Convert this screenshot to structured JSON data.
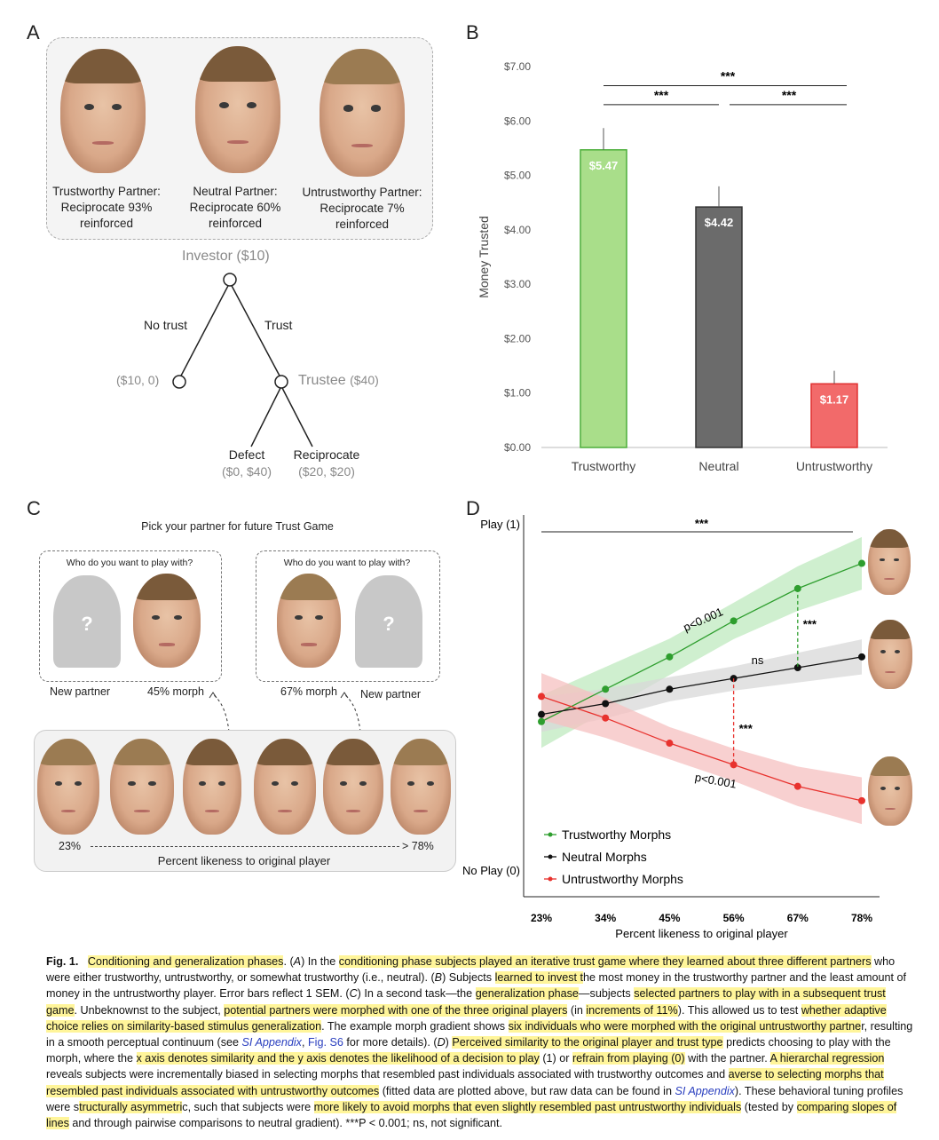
{
  "panels": {
    "a": "A",
    "b": "B",
    "c": "C",
    "d": "D"
  },
  "panel_a": {
    "partners": [
      {
        "line1": "Trustworthy Partner:",
        "line2": "Reciprocate 93%",
        "line3": "reinforced"
      },
      {
        "line1": "Neutral Partner:",
        "line2": "Reciprocate 60%",
        "line3": "reinforced"
      },
      {
        "line1": "Untrustworthy Partner:",
        "line2": "Reciprocate 7%",
        "line3": "reinforced"
      }
    ],
    "tree": {
      "investor": "Investor ($10)",
      "no_trust": "No trust",
      "trust": "Trust",
      "no_trust_payoff": "($10, 0)",
      "trustee": "Trustee",
      "trustee_amount": "($40)",
      "defect": "Defect",
      "defect_payoff": "($0, $40)",
      "reciprocate": "Reciprocate",
      "reciprocate_payoff": "($20, $20)"
    }
  },
  "panel_c": {
    "title": "Pick your partner for future Trust Game",
    "question": "Who do you want to play with?",
    "unknown_mark": "?",
    "left_labels": [
      "New partner",
      "45% morph"
    ],
    "right_labels": [
      "67% morph",
      "New partner"
    ],
    "gradient_left": "23%",
    "gradient_right": "> 78%",
    "gradient_label": "Percent likeness to original player"
  },
  "chart_data": [
    {
      "type": "bar",
      "categories": [
        "Trustworthy",
        "Neutral",
        "Untrustworthy"
      ],
      "values": [
        5.47,
        4.42,
        1.17
      ],
      "data_labels": [
        "$5.47",
        "$4.42",
        "$1.17"
      ],
      "errors": [
        0.4,
        0.38,
        0.24
      ],
      "colors": [
        "#a9de8a",
        "#6b6b6b",
        "#f26a6a"
      ],
      "edge_colors": [
        "#4cae3a",
        "#333333",
        "#e03030"
      ],
      "ylabel": "Money Trusted",
      "ylim": [
        0,
        7
      ],
      "yticks": [
        "$0.00",
        "$1.00",
        "$2.00",
        "$3.00",
        "$4.00",
        "$5.00",
        "$6.00",
        "$7.00"
      ],
      "significance": [
        "***",
        "***",
        "***"
      ]
    },
    {
      "type": "line",
      "x": [
        23,
        34,
        45,
        56,
        67,
        78
      ],
      "xtick_labels": [
        "23%",
        "34%",
        "45%",
        "56%",
        "67%",
        "78%"
      ],
      "xlabel": "Percent likeness to original player",
      "ylim": [
        0,
        1
      ],
      "ytick_labels": [
        "No Play (0)",
        "Play (1)"
      ],
      "series": [
        {
          "name": "Trustworthy Morphs",
          "color": "#2e9e2e",
          "band": "#bfeabf",
          "values": [
            0.45,
            0.54,
            0.63,
            0.73,
            0.82,
            0.89
          ]
        },
        {
          "name": "Neutral Morphs",
          "color": "#111111",
          "band": "#d8d8d8",
          "values": [
            0.47,
            0.5,
            0.54,
            0.57,
            0.6,
            0.63
          ]
        },
        {
          "name": "Untrustworthy Morphs",
          "color": "#e8322e",
          "band": "#f6c0c0",
          "values": [
            0.52,
            0.46,
            0.39,
            0.33,
            0.27,
            0.23
          ]
        }
      ],
      "annotations": [
        "***",
        "p<0.001",
        "ns",
        "***",
        "***",
        "p<0.001"
      ]
    }
  ],
  "caption": {
    "fig_label": "Fig. 1.",
    "parts": [
      {
        "t": "Conditioning and generalization phases",
        "h": true
      },
      {
        "t": ". ("
      },
      {
        "t": "A",
        "i": true
      },
      {
        "t": ") In the "
      },
      {
        "t": "conditioning phase subjects played an iterative trust game where they learned about three different partners",
        "h": true
      },
      {
        "t": " who were either trustworthy, untrustworthy, or somewhat trustworthy (i.e., neutral). ("
      },
      {
        "t": "B",
        "i": true
      },
      {
        "t": ") Subjects "
      },
      {
        "t": "learned to invest t",
        "h": true
      },
      {
        "t": "he most money in the trustworthy partner and the least amount of money in the untrustworthy player. Error bars reflect 1 SEM. ("
      },
      {
        "t": "C",
        "i": true
      },
      {
        "t": ") In a second task—the "
      },
      {
        "t": "generalization phase",
        "h": true
      },
      {
        "t": "—subjects "
      },
      {
        "t": "selected partners to play with in a subsequent trust game",
        "h": true
      },
      {
        "t": ". Unbeknownst to the subject, "
      },
      {
        "t": "potential partners were morphed with one of the three original players",
        "h": true
      },
      {
        "t": " (in "
      },
      {
        "t": "increments of 11%",
        "h": true
      },
      {
        "t": "). This allowed us to test "
      },
      {
        "t": "whether adaptive choice relies on similarity-based stimulus generalization",
        "h": true
      },
      {
        "t": ". The example morph gradient shows "
      },
      {
        "t": "six individuals who were morphed with the original untrustworthy partne",
        "h": true
      },
      {
        "t": "r, resulting in a smooth perceptual continuum (see "
      },
      {
        "t": "SI Appendix",
        "b": true
      },
      {
        "t": ", "
      },
      {
        "t": "Fig. S6",
        "b2": true
      },
      {
        "t": " for more details). ("
      },
      {
        "t": "D",
        "i": true
      },
      {
        "t": ") "
      },
      {
        "t": "Perceived similarity to the original player and trust type",
        "h": true
      },
      {
        "t": " predicts choosing to play with the morph, where the "
      },
      {
        "t": "x axis denotes similarity and the y axis denotes the likelihood of a decision to play",
        "h": true
      },
      {
        "t": " (1) or "
      },
      {
        "t": "refrain from playing (0)",
        "h": true
      },
      {
        "t": " with the partner. "
      },
      {
        "t": "A hierarchal regression",
        "h": true
      },
      {
        "t": " reveals subjects were incrementally biased in selecting morphs that resembled past individuals associated with trustworthy outcomes and "
      },
      {
        "t": "averse to selecting morphs that resembled past individuals associated with untrustworthy outcomes",
        "h": true
      },
      {
        "t": " (fitted data are plotted above, but raw data can be found in "
      },
      {
        "t": "SI Appendix",
        "b": true
      },
      {
        "t": "). These behavioral tuning profiles were s"
      },
      {
        "t": "tructurally asymmetri",
        "h": true
      },
      {
        "t": "c, such that subjects were "
      },
      {
        "t": "more likely to avoid morphs that even slightly resembled past untrustworthy individuals",
        "h": true
      },
      {
        "t": " (tested by "
      },
      {
        "t": "comparing slopes of lines",
        "h": true
      },
      {
        "t": " and through pairwise comparisons to neutral gradient). ***P < 0.001; ns, not significant."
      }
    ]
  }
}
